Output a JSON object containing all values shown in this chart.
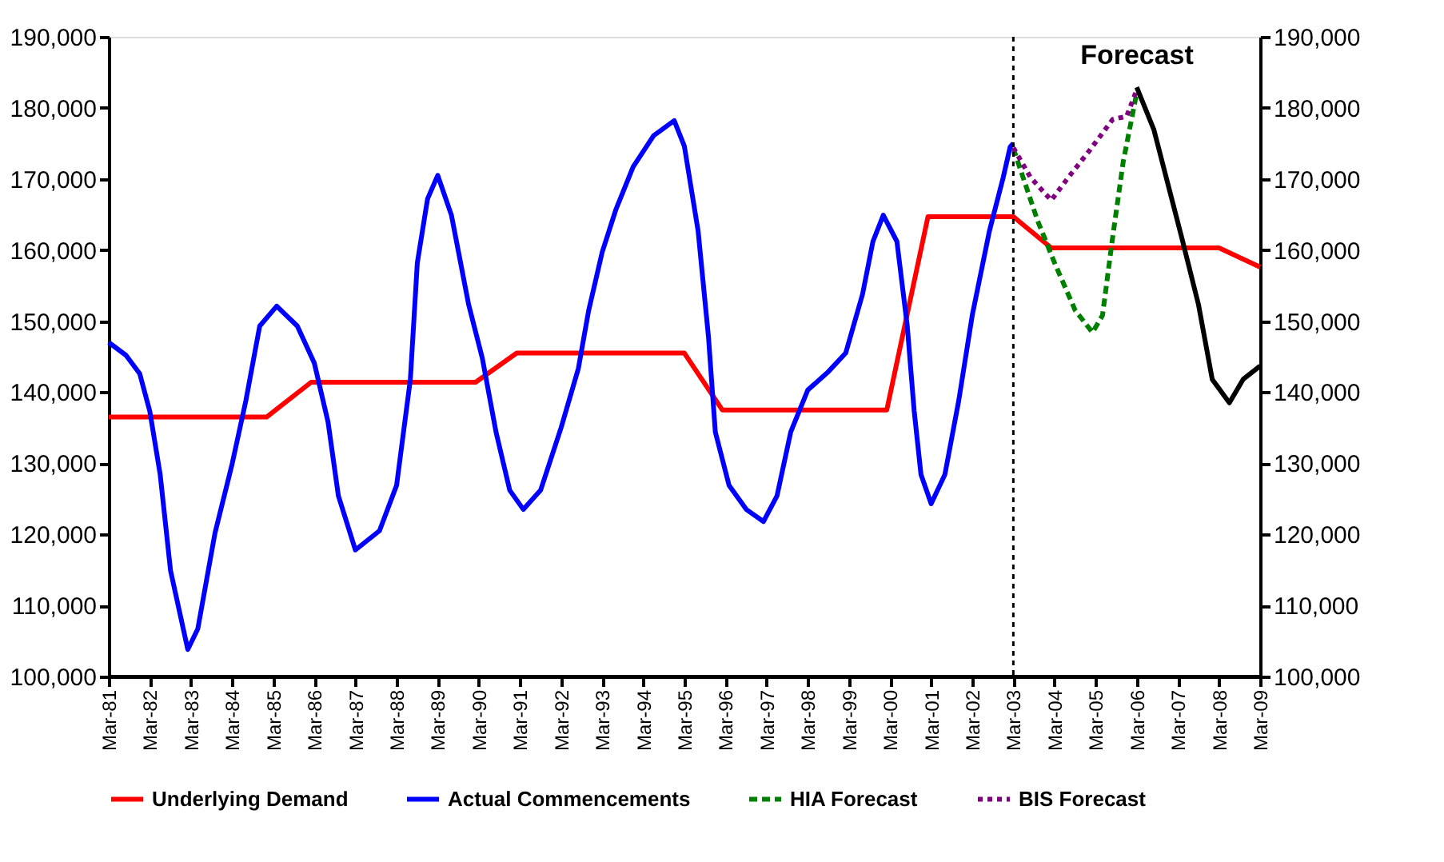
{
  "chart_data": {
    "type": "line",
    "annotations": [
      "Forecast"
    ],
    "xlim": [
      "1981-03",
      "2009-03"
    ],
    "xticks": [
      {
        "value": "1981-03",
        "label": "Mar-81"
      },
      {
        "value": "1982-03",
        "label": "Mar-82"
      },
      {
        "value": "1983-03",
        "label": "Mar-83"
      },
      {
        "value": "1984-03",
        "label": "Mar-84"
      },
      {
        "value": "1985-03",
        "label": "Mar-85"
      },
      {
        "value": "1986-03",
        "label": "Mar-86"
      },
      {
        "value": "1987-03",
        "label": "Mar-87"
      },
      {
        "value": "1988-03",
        "label": "Mar-88"
      },
      {
        "value": "1989-03",
        "label": "Mar-89"
      },
      {
        "value": "1990-03",
        "label": "Mar-90"
      },
      {
        "value": "1991-03",
        "label": "Mar-91"
      },
      {
        "value": "1992-03",
        "label": "Mar-92"
      },
      {
        "value": "1993-03",
        "label": "Mar-93"
      },
      {
        "value": "1994-03",
        "label": "Mar-94"
      },
      {
        "value": "1995-03",
        "label": "Mar-95"
      },
      {
        "value": "1996-03",
        "label": "Mar-96"
      },
      {
        "value": "1997-03",
        "label": "Mar-97"
      },
      {
        "value": "1998-03",
        "label": "Mar-98"
      },
      {
        "value": "1999-03",
        "label": "Mar-99"
      },
      {
        "value": "2000-03",
        "label": "Mar-00"
      },
      {
        "value": "2001-03",
        "label": "Mar-01"
      },
      {
        "value": "2002-03",
        "label": "Mar-02"
      },
      {
        "value": "2003-03",
        "label": "Mar-03"
      },
      {
        "value": "2004-03",
        "label": "Mar-04"
      },
      {
        "value": "2005-03",
        "label": "Mar-05"
      },
      {
        "value": "2006-03",
        "label": "Mar-06"
      },
      {
        "value": "2007-03",
        "label": "Mar-07"
      },
      {
        "value": "2008-03",
        "label": "Mar-08"
      },
      {
        "value": "2009-03",
        "label": "Mar-09"
      }
    ],
    "ylim": [
      100000,
      190000
    ],
    "yticks": [
      {
        "value": 100000,
        "label": "100,000"
      },
      {
        "value": 110000,
        "label": "110,000"
      },
      {
        "value": 120000,
        "label": "120,000"
      },
      {
        "value": 130000,
        "label": "130,000"
      },
      {
        "value": 140000,
        "label": "140,000"
      },
      {
        "value": 150000,
        "label": "150,000"
      },
      {
        "value": 160000,
        "label": "160,000"
      },
      {
        "value": 170000,
        "label": "170,000"
      },
      {
        "value": 180000,
        "label": "180,000"
      },
      {
        "value": 190000,
        "label": "190,000"
      }
    ],
    "y2lim": [
      100000,
      190000
    ],
    "y2ticks": [
      {
        "value": 100000,
        "label": "100,000"
      },
      {
        "value": 110000,
        "label": "110,000"
      },
      {
        "value": 120000,
        "label": "120,000"
      },
      {
        "value": 130000,
        "label": "130,000"
      },
      {
        "value": 140000,
        "label": "140,000"
      },
      {
        "value": 150000,
        "label": "150,000"
      },
      {
        "value": 160000,
        "label": "160,000"
      },
      {
        "value": 170000,
        "label": "170,000"
      },
      {
        "value": 180000,
        "label": "180,000"
      },
      {
        "value": 190000,
        "label": "190,000"
      }
    ],
    "grid": false,
    "legend": "bottom",
    "marker": "none",
    "ref_lines": [
      {
        "axis": "x",
        "value": "2003-03",
        "color": "#000000",
        "line_style": "dotted"
      }
    ],
    "series": [
      {
        "name": "Underlying Demand",
        "color": "#ff0000",
        "line_style": "solid",
        "x": [
          "1981-03",
          "1985-01",
          "1986-02",
          "1990-02",
          "1991-02",
          "1995-03",
          "1996-02",
          "2000-02",
          "2001-02",
          "2003-03",
          "2004-02",
          "2008-03",
          "2009-03"
        ],
        "values": [
          136500,
          136500,
          141400,
          141400,
          145500,
          145500,
          137500,
          137500,
          164700,
          164700,
          160300,
          160300,
          157600
        ]
      },
      {
        "name": "Actual Commencements",
        "color": "#0000ff",
        "line_style": "solid",
        "x": [
          "1981-03",
          "1981-08",
          "1981-12",
          "1982-03",
          "1982-06",
          "1982-09",
          "1983-02",
          "1983-05",
          "1983-10",
          "1984-03",
          "1984-07",
          "1984-11",
          "1985-04",
          "1985-10",
          "1986-03",
          "1986-07",
          "1986-10",
          "1987-03",
          "1987-10",
          "1988-03",
          "1988-07",
          "1988-09",
          "1988-12",
          "1989-03",
          "1989-07",
          "1989-12",
          "1990-04",
          "1990-08",
          "1990-12",
          "1991-04",
          "1991-09",
          "1992-03",
          "1992-08",
          "1992-11",
          "1993-03",
          "1993-07",
          "1993-12",
          "1994-06",
          "1994-12",
          "1995-03",
          "1995-07",
          "1995-10",
          "1995-12",
          "1996-04",
          "1996-09",
          "1997-02",
          "1997-06",
          "1997-10",
          "1998-03",
          "1998-09",
          "1999-02",
          "1999-07",
          "1999-10",
          "2000-01",
          "2000-05",
          "2000-08",
          "2000-10",
          "2000-12",
          "2001-03",
          "2001-07",
          "2001-11",
          "2002-03",
          "2002-08",
          "2002-12",
          "2003-02",
          "2003-03"
        ],
        "values": [
          147000,
          145200,
          142600,
          137300,
          128400,
          114900,
          103800,
          106700,
          120200,
          129900,
          138800,
          149300,
          152100,
          149300,
          144100,
          135800,
          125400,
          117800,
          120500,
          126900,
          141800,
          158200,
          167200,
          170500,
          164900,
          152300,
          144800,
          134400,
          126200,
          123500,
          126200,
          135000,
          143300,
          151500,
          159700,
          165700,
          171700,
          176100,
          178200,
          174600,
          162700,
          147800,
          134400,
          126900,
          123500,
          121800,
          125400,
          134400,
          140300,
          142900,
          145500,
          153800,
          161200,
          164900,
          161200,
          149300,
          137400,
          128400,
          124300,
          128400,
          138800,
          150800,
          162700,
          170200,
          174500,
          175000
        ]
      },
      {
        "name": "HIA Forecast",
        "color": "#008000",
        "line_style": "dashed",
        "x": [
          "2003-03",
          "2003-10",
          "2004-03",
          "2004-09",
          "2005-02",
          "2005-05",
          "2005-08",
          "2005-11",
          "2006-03"
        ],
        "values": [
          174300,
          164200,
          158200,
          151500,
          148400,
          150800,
          162000,
          172400,
          182100
        ]
      },
      {
        "name": "BIS Forecast",
        "color": "#800080",
        "line_style": "dotted",
        "x": [
          "2003-03",
          "2003-08",
          "2004-02",
          "2004-07",
          "2005-01",
          "2005-08",
          "2005-12",
          "2006-03"
        ],
        "values": [
          174400,
          170200,
          167000,
          170200,
          173900,
          178400,
          178800,
          182500
        ]
      },
      {
        "color": "#000000",
        "line_style": "solid",
        "x": [
          "2006-03",
          "2006-08",
          "2006-12",
          "2007-04",
          "2007-09",
          "2008-01",
          "2008-06",
          "2008-10",
          "2009-03"
        ],
        "values": [
          182900,
          176900,
          169400,
          162000,
          152300,
          141800,
          138500,
          141800,
          143700
        ]
      }
    ]
  }
}
